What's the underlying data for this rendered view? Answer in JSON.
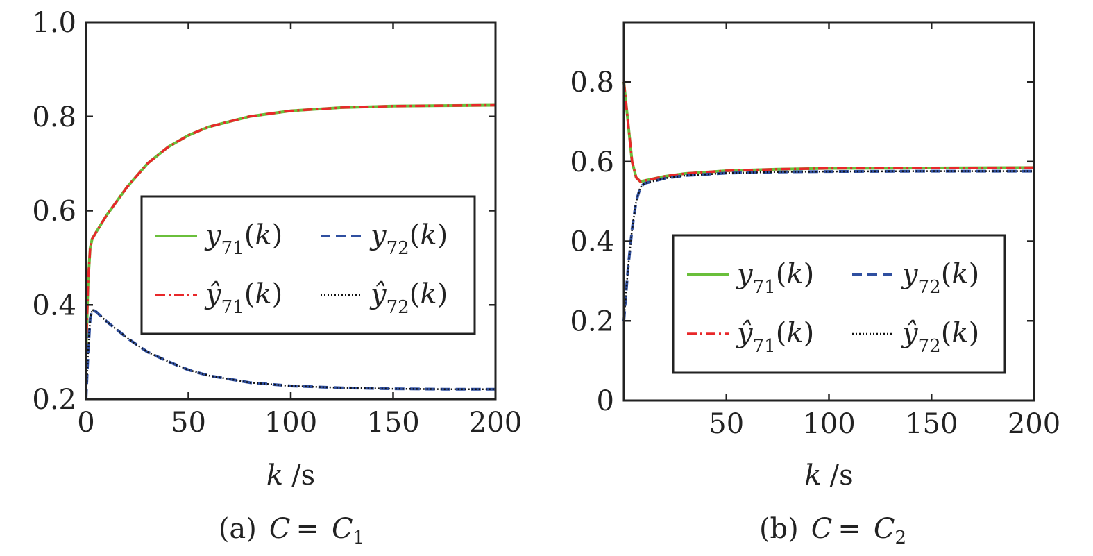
{
  "chart_data": [
    {
      "type": "line",
      "caption": "(a)  C =  C1",
      "caption_parts": {
        "tag": "(a)",
        "lhs": "C",
        "eq": "=",
        "rhs": "C",
        "rhs_sub": "1"
      },
      "xlabel": "k /s",
      "xlabel_parts": {
        "var": "k",
        "unit": "/s"
      },
      "xlim": [
        0,
        200
      ],
      "ylim": [
        0.2,
        1.0
      ],
      "xticks": [
        "0",
        "50",
        "100",
        "150",
        "200"
      ],
      "xtick_values": [
        0,
        50,
        100,
        150,
        200
      ],
      "yticks": [
        "0.2",
        "0.4",
        "0.6",
        "0.8",
        "1.0"
      ],
      "ytick_values": [
        0.2,
        0.4,
        0.6,
        0.8,
        1.0
      ],
      "legend_position": "center-right",
      "x": [
        0,
        1,
        2,
        3,
        5,
        10,
        20,
        30,
        40,
        50,
        60,
        80,
        100,
        125,
        150,
        175,
        200
      ],
      "series": [
        {
          "name": "y71(k)",
          "sym": "y",
          "sub": "71",
          "hat": false,
          "color": "#6abf3b",
          "style": "solid",
          "values": [
            0.3,
            0.45,
            0.52,
            0.54,
            0.555,
            0.59,
            0.65,
            0.7,
            0.735,
            0.76,
            0.778,
            0.8,
            0.812,
            0.819,
            0.822,
            0.823,
            0.824
          ]
        },
        {
          "name": "ŷ71(k)",
          "sym": "ŷ",
          "sub": "71",
          "hat": true,
          "color": "#e8282a",
          "style": "dashdot",
          "values": [
            0.3,
            0.45,
            0.52,
            0.54,
            0.555,
            0.59,
            0.65,
            0.7,
            0.735,
            0.76,
            0.778,
            0.8,
            0.812,
            0.819,
            0.822,
            0.823,
            0.824
          ]
        },
        {
          "name": "y72(k)",
          "sym": "y",
          "sub": "72",
          "hat": false,
          "color": "#2f4fa0",
          "style": "dashed",
          "values": [
            0.2,
            0.3,
            0.37,
            0.39,
            0.385,
            0.365,
            0.33,
            0.3,
            0.28,
            0.262,
            0.25,
            0.235,
            0.228,
            0.224,
            0.222,
            0.221,
            0.221
          ]
        },
        {
          "name": "ŷ72(k)",
          "sym": "ŷ",
          "sub": "72",
          "hat": true,
          "color": "#111111",
          "style": "dotted",
          "values": [
            0.2,
            0.3,
            0.37,
            0.39,
            0.385,
            0.365,
            0.33,
            0.3,
            0.28,
            0.262,
            0.25,
            0.235,
            0.228,
            0.224,
            0.222,
            0.221,
            0.221
          ]
        }
      ]
    },
    {
      "type": "line",
      "caption": "(b)  C =  C2",
      "caption_parts": {
        "tag": "(b)",
        "lhs": "C",
        "eq": "=",
        "rhs": "C",
        "rhs_sub": "2"
      },
      "xlabel": "k /s",
      "xlabel_parts": {
        "var": "k",
        "unit": "/s"
      },
      "xlim": [
        0,
        200
      ],
      "ylim": [
        0,
        0.95
      ],
      "xticks": [
        "50",
        "100",
        "150",
        "200"
      ],
      "xtick_values": [
        50,
        100,
        150,
        200
      ],
      "yticks": [
        "0",
        "0.2",
        "0.4",
        "0.6",
        "0.8"
      ],
      "ytick_values": [
        0,
        0.2,
        0.4,
        0.6,
        0.8
      ],
      "legend_position": "lower-center",
      "x": [
        0,
        2,
        4,
        6,
        8,
        10,
        20,
        30,
        50,
        75,
        100,
        150,
        200
      ],
      "series": [
        {
          "name": "y71(k)",
          "sym": "y",
          "sub": "71",
          "hat": false,
          "color": "#6abf3b",
          "style": "solid",
          "values": [
            0.8,
            0.7,
            0.6,
            0.56,
            0.55,
            0.552,
            0.563,
            0.57,
            0.577,
            0.581,
            0.583,
            0.584,
            0.585
          ]
        },
        {
          "name": "ŷ71(k)",
          "sym": "ŷ",
          "sub": "71",
          "hat": true,
          "color": "#e8282a",
          "style": "dashdot",
          "values": [
            0.8,
            0.7,
            0.6,
            0.56,
            0.55,
            0.552,
            0.563,
            0.57,
            0.577,
            0.581,
            0.583,
            0.584,
            0.585
          ]
        },
        {
          "name": "y72(k)",
          "sym": "y",
          "sub": "72",
          "hat": false,
          "color": "#2f4fa0",
          "style": "dashed",
          "values": [
            0.2,
            0.33,
            0.43,
            0.5,
            0.535,
            0.545,
            0.558,
            0.565,
            0.571,
            0.574,
            0.575,
            0.576,
            0.576
          ]
        },
        {
          "name": "ŷ72(k)",
          "sym": "ŷ",
          "sub": "72",
          "hat": true,
          "color": "#111111",
          "style": "dotted",
          "values": [
            0.2,
            0.33,
            0.43,
            0.5,
            0.535,
            0.545,
            0.558,
            0.565,
            0.571,
            0.574,
            0.575,
            0.576,
            0.576
          ]
        }
      ]
    }
  ]
}
